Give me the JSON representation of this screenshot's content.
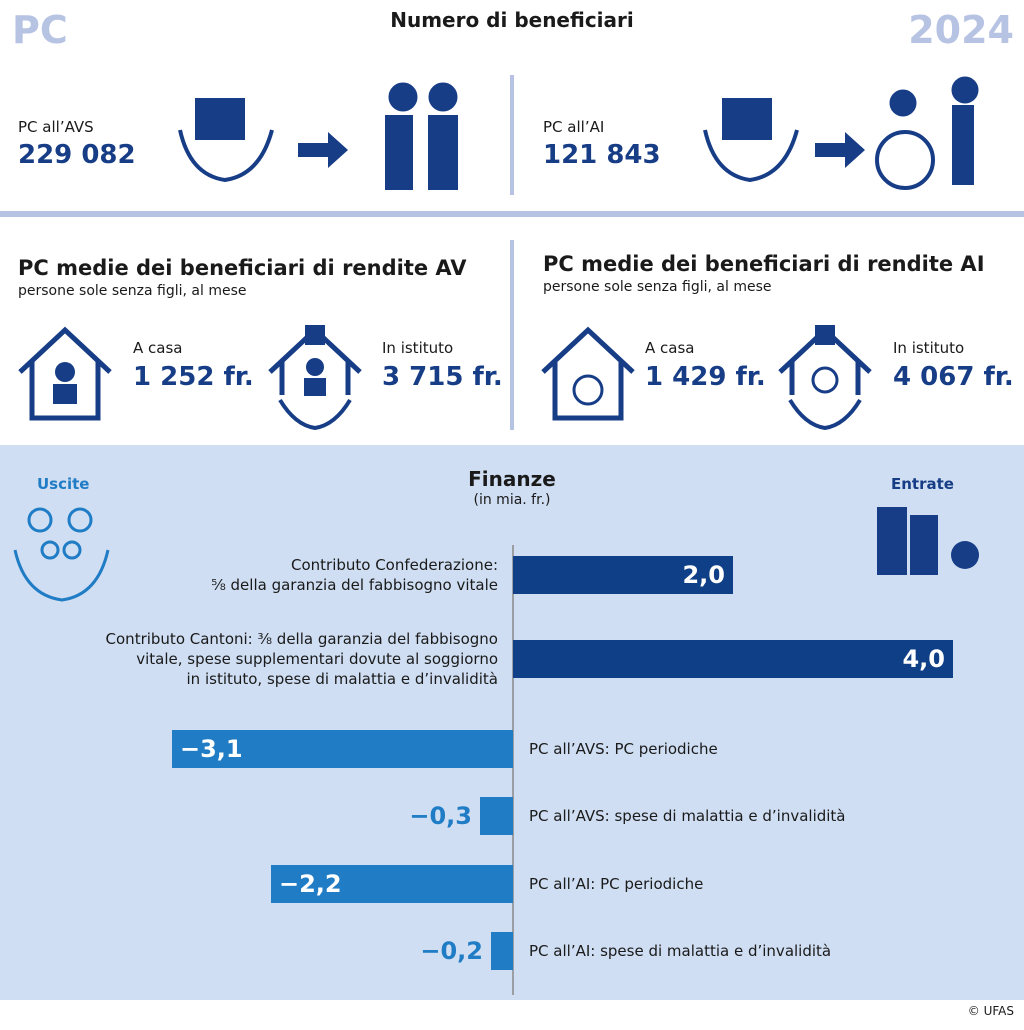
{
  "header": {
    "left": "PC",
    "title": "Numero di beneficiari",
    "year": "2024"
  },
  "beneficiaries": [
    {
      "label": "PC all’AVS",
      "value": "229 082"
    },
    {
      "label": "PC all’AI",
      "value": "121 843"
    }
  ],
  "averages": [
    {
      "title": "PC medie dei beneficiari di rendite AV",
      "subtitle": "persone sole senza figli, al mese",
      "home_label": "A casa",
      "home_value": "1 252 fr.",
      "institution_label": "In istituto",
      "institution_value": "3 715 fr."
    },
    {
      "title": "PC medie dei beneficiari di rendite AI",
      "subtitle": "persone sole senza figli, al mese",
      "home_label": "A casa",
      "home_value": "1 429 fr.",
      "institution_label": "In istituto",
      "institution_value": "4 067 fr."
    }
  ],
  "chart_data": {
    "type": "bar",
    "orientation": "horizontal",
    "title": "Finanze",
    "subtitle": "(in mia. fr.)",
    "left_label": "Uscite",
    "right_label": "Entrate",
    "categories": [
      "Contributo Confederazione:\n⅝ della garanzia del fabbisogno vitale",
      "Contributo Cantoni: ⅜ della garanzia del fabbisogno\nvitale, spese supplementari dovute al soggiorno\nin istituto, spese di malattia e d’invalidità",
      "PC all’AVS: PC periodiche",
      "PC all’AVS: spese di malattia e d’invalidità",
      "PC all’AI: PC periodiche",
      "PC all’AI: spese di malattia e d’invalidità"
    ],
    "values": [
      2.0,
      4.0,
      -3.1,
      -0.3,
      -2.2,
      -0.2
    ],
    "value_labels": [
      "2,0",
      "4,0",
      "−3,1",
      "−0,3",
      "−2,2",
      "−0,2"
    ],
    "positive_color": "#0f3f86",
    "negative_color": "#1f7cc5"
  },
  "footer": "© UFAS"
}
